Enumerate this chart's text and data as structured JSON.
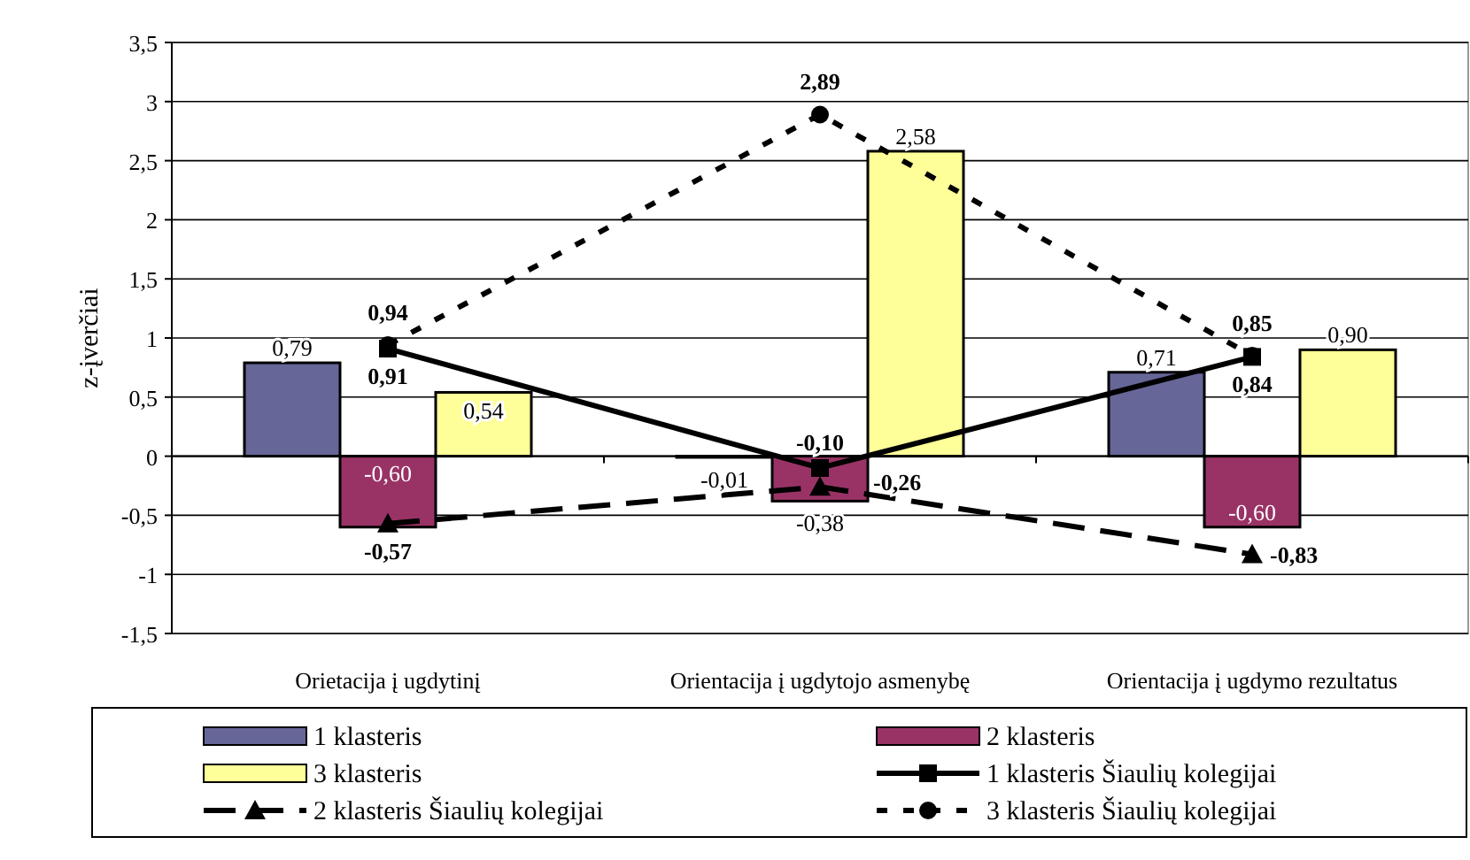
{
  "chart_data": {
    "type": "bar",
    "ylabel": "z-įverčiai",
    "categories": [
      "Orietacija į ugdytinį",
      "Orientacija į ugdytojo asmenybę",
      "Orientacija į ugdymo rezultatus"
    ],
    "ylim": [
      -1.5,
      3.5
    ],
    "yticks": [
      {
        "value": -1.5,
        "label": "-1,5"
      },
      -1,
      {
        "value": -0.5,
        "label": "-0,5"
      },
      0,
      {
        "value": 0.5,
        "label": "0,5"
      },
      1,
      {
        "value": 1.5,
        "label": "1,5"
      },
      2,
      {
        "value": 2.5,
        "label": "2,5"
      },
      3,
      {
        "value": 3.5,
        "label": "3,5"
      }
    ],
    "grid": "y",
    "legend": "bottom",
    "series": [
      {
        "name": "1 klasteris",
        "color": "#666699",
        "values": [
          0.79,
          -0.01,
          0.71
        ],
        "value_labels": [
          "0,79",
          "-0,01",
          "0,71"
        ]
      },
      {
        "name": "2 klasteris",
        "color": "#993366",
        "values": [
          -0.6,
          -0.38,
          -0.6
        ],
        "value_labels": [
          "-0,60",
          "-0,38",
          "-0,60"
        ]
      },
      {
        "name": "3 klasteris",
        "color": "#ffff99",
        "values": [
          0.54,
          2.58,
          0.9
        ],
        "value_labels": [
          "0,54",
          "2,58",
          "0,90"
        ]
      },
      {
        "name": "1 klasteris Šiaulių kolegijai",
        "type": "line",
        "color": "#000000",
        "marker": "square",
        "line_style": "solid",
        "values": [
          0.91,
          -0.1,
          0.84
        ],
        "value_labels": [
          "0,91",
          "-0,10",
          "0,84"
        ]
      },
      {
        "name": "2 klasteris Šiaulių kolegijai",
        "type": "line",
        "color": "#000000",
        "marker": "triangle",
        "line_style": "dashed",
        "values": [
          -0.57,
          -0.26,
          -0.83
        ],
        "value_labels": [
          "-0,57",
          "-0,26",
          "-0,83"
        ]
      },
      {
        "name": "3 klasteris Šiaulių kolegijai",
        "type": "line",
        "color": "#000000",
        "marker": "circle",
        "line_style": "dotted",
        "values": [
          0.94,
          2.89,
          0.85
        ],
        "value_labels": [
          "0,94",
          "2,89",
          "0,85"
        ]
      }
    ]
  }
}
